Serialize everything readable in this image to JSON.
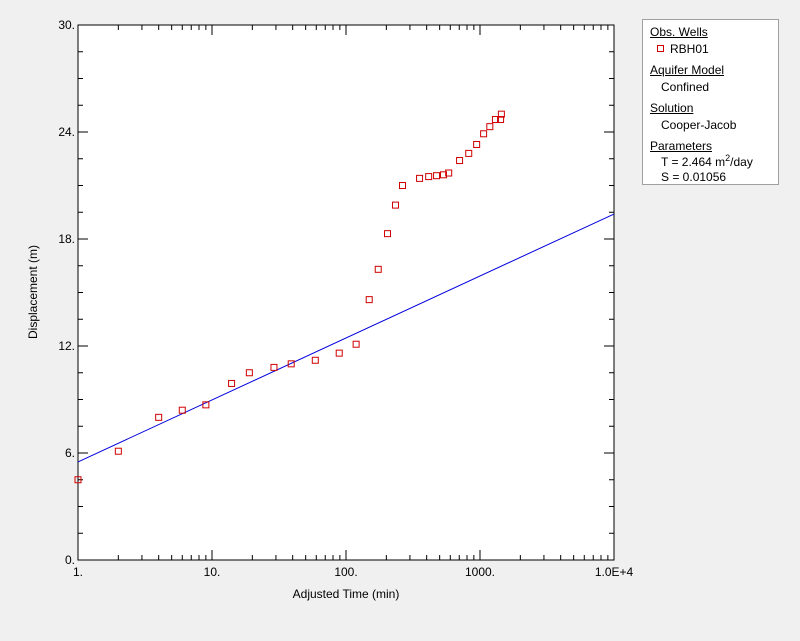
{
  "colors": {
    "background": "#f0f0f0",
    "plot_area": "#ffffff",
    "data_marker": "#d00000",
    "fit_line": "#0000dd"
  },
  "chart_data": {
    "type": "scatter",
    "xscale": "log",
    "xlabel": "Adjusted Time (min)",
    "ylabel": "Displacement (m)",
    "xlim": [
      1,
      10000
    ],
    "ylim": [
      0,
      30
    ],
    "xticklabels": [
      "1.",
      "10.",
      "100.",
      "1000.",
      "1.0E+4"
    ],
    "yticklabels": [
      "0.",
      "6.",
      "12.",
      "18.",
      "24.",
      "30."
    ],
    "grid": false,
    "series": [
      {
        "name": "RBH01",
        "marker": "square",
        "points": [
          [
            1,
            4.5
          ],
          [
            2,
            6.1
          ],
          [
            4,
            8.0
          ],
          [
            6,
            8.4
          ],
          [
            9,
            8.7
          ],
          [
            14,
            9.9
          ],
          [
            19,
            10.5
          ],
          [
            29,
            10.8
          ],
          [
            39,
            11.0
          ],
          [
            59,
            11.2
          ],
          [
            89,
            11.6
          ],
          [
            119,
            12.1
          ],
          [
            149,
            14.6
          ],
          [
            174,
            16.3
          ],
          [
            204,
            18.3
          ],
          [
            234,
            19.9
          ],
          [
            264,
            21.0
          ],
          [
            354,
            21.4
          ],
          [
            414,
            21.5
          ],
          [
            474,
            21.55
          ],
          [
            534,
            21.6
          ],
          [
            584,
            21.7
          ],
          [
            704,
            22.4
          ],
          [
            824,
            22.8
          ],
          [
            944,
            23.3
          ],
          [
            1064,
            23.9
          ],
          [
            1184,
            24.3
          ],
          [
            1304,
            24.7
          ],
          [
            1424,
            24.7
          ],
          [
            1444,
            25.0
          ]
        ]
      },
      {
        "name": "Cooper-Jacob fit",
        "style": "line",
        "points": [
          [
            1,
            5.5
          ],
          [
            10000,
            19.4
          ]
        ]
      }
    ]
  },
  "legend": {
    "obs_wells_title": "Obs. Wells",
    "well_name": "RBH01",
    "aquifer_model_title": "Aquifer Model",
    "aquifer_model": "Confined",
    "solution_title": "Solution",
    "solution": "Cooper-Jacob",
    "parameters_title": "Parameters",
    "t_prefix": "T = 2.464 m",
    "t_exponent": "2",
    "t_suffix": "/day",
    "s_value": "S = 0.01056"
  }
}
